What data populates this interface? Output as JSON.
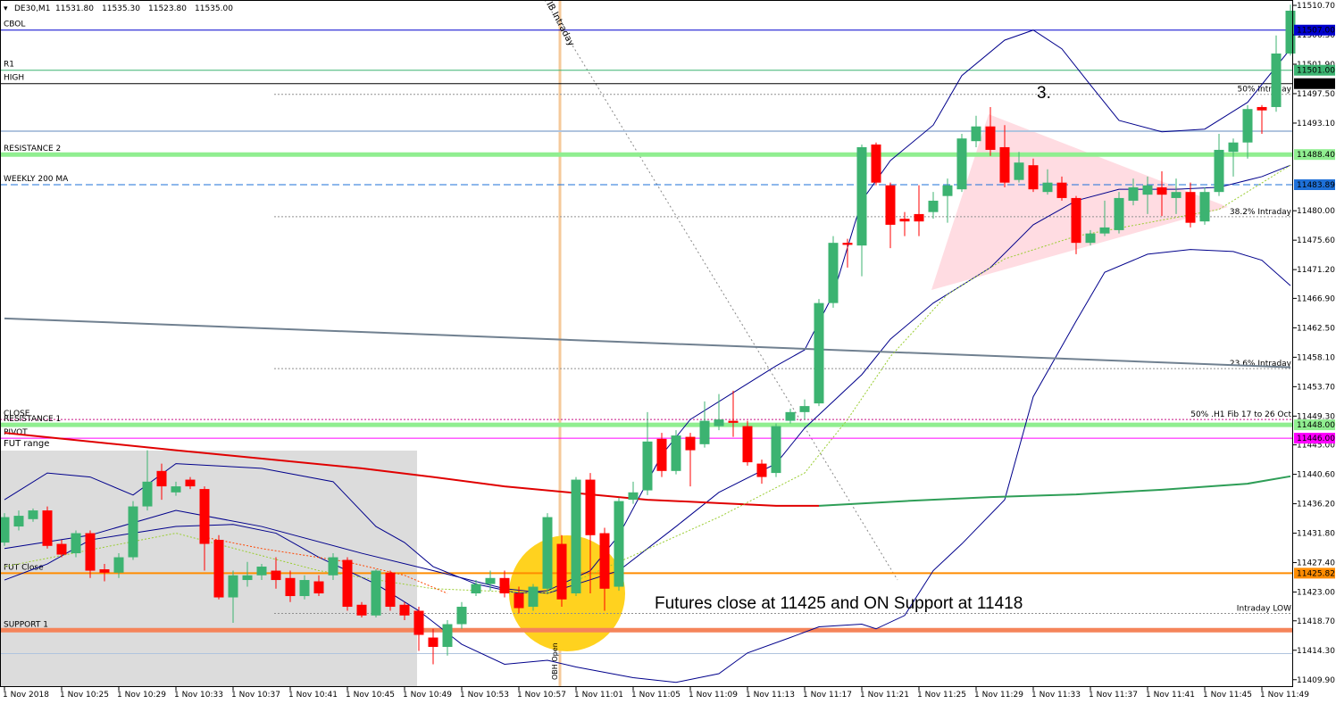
{
  "chart_data": {
    "type": "candlestick",
    "title": "DE30,M1",
    "header_values": [
      {
        "value": 11531.8,
        "label": "11531.80"
      },
      {
        "value": 11535.3,
        "label": "11535.30"
      },
      {
        "value": 11523.8,
        "label": "11523.80"
      },
      {
        "value": 11535.0,
        "label": "11535.00"
      }
    ],
    "up_color": "#3cb371",
    "down_color": "#ff0000",
    "ylim": [
      11408.8,
      11511.5
    ],
    "yticks": [
      {
        "value": 11510.7,
        "label": "11510.70"
      },
      {
        "value": 11506.3,
        "label": "11506.30"
      },
      {
        "value": 11501.9,
        "label": "11501.90"
      },
      {
        "value": 11497.5,
        "label": "11497.50"
      },
      {
        "value": 11493.1,
        "label": "11493.10"
      },
      {
        "value": 11480.0,
        "label": "11480.00"
      },
      {
        "value": 11475.6,
        "label": "11475.60"
      },
      {
        "value": 11471.2,
        "label": "11471.20"
      },
      {
        "value": 11466.9,
        "label": "11466.90"
      },
      {
        "value": 11462.5,
        "label": "11462.50"
      },
      {
        "value": 11458.1,
        "label": "11458.10"
      },
      {
        "value": 11453.7,
        "label": "11453.70"
      },
      {
        "value": 11449.3,
        "label": "11449.30"
      },
      {
        "value": 11445.0,
        "label": "11445.00"
      },
      {
        "value": 11440.6,
        "label": "11440.60"
      },
      {
        "value": 11436.2,
        "label": "11436.20"
      },
      {
        "value": 11431.8,
        "label": "11431.80"
      },
      {
        "value": 11427.4,
        "label": "11427.40"
      },
      {
        "value": 11423.0,
        "label": "11423.00"
      },
      {
        "value": 11418.7,
        "label": "11418.70"
      },
      {
        "value": 11414.3,
        "label": "11414.30"
      },
      {
        "value": 11409.9,
        "label": "11409.90"
      }
    ],
    "categories": [
      "1 Nov 2018",
      null,
      null,
      null,
      "1 Nov 10:25",
      null,
      null,
      null,
      "1 Nov 10:29",
      null,
      null,
      null,
      "1 Nov 10:33",
      null,
      null,
      null,
      "1 Nov 10:37",
      null,
      null,
      null,
      "1 Nov 10:41",
      null,
      null,
      null,
      "1 Nov 10:45",
      null,
      null,
      null,
      "1 Nov 10:49",
      null,
      null,
      null,
      "1 Nov 10:53",
      null,
      null,
      null,
      "1 Nov 10:57",
      null,
      null,
      null,
      "1 Nov 11:01",
      null,
      null,
      null,
      "1 Nov 11:05",
      null,
      null,
      null,
      "1 Nov 11:09",
      null,
      null,
      null,
      "1 Nov 11:13",
      null,
      null,
      null,
      "1 Nov 11:17",
      null,
      null,
      null,
      "1 Nov 11:21",
      null,
      null,
      null,
      "1 Nov 11:25",
      null,
      null,
      null,
      "1 Nov 11:29",
      null,
      null,
      null,
      "1 Nov 11:33",
      null,
      null,
      null,
      "1 Nov 11:37",
      null,
      null,
      null,
      "1 Nov 11:41",
      null,
      null,
      null,
      "1 Nov 11:45",
      null,
      null,
      null,
      "1 Nov 11:49",
      null,
      null
    ],
    "open": [
      11430.4,
      11432.8,
      11433.9,
      11435.2,
      11430.2,
      11428.8,
      11431.8,
      11426.4,
      11425.9,
      11428.2,
      11435.8,
      11441.1,
      11437.9,
      11439.8,
      11438.4,
      11430.8,
      11422.2,
      11424.8,
      11425.5,
      11426.2,
      11425.1,
      11422.4,
      11424.6,
      11425.5,
      11427.8,
      11421.1,
      11419.5,
      11425.9,
      11421.1,
      11420.2,
      11416.2,
      11414.8,
      11418.2,
      11422.8,
      11424.2,
      11425.1,
      11422.8,
      11420.8,
      11423.5,
      11430.2,
      11422.8,
      11439.8,
      11431.8,
      11423.8,
      11436.8,
      11438.2,
      11445.9,
      11441.1,
      11446.2,
      11445.1,
      11447.8,
      11448.6,
      11447.8,
      11442.2,
      11440.8,
      11448.6,
      11449.9,
      11451.2,
      11466.2,
      11475.2,
      11474.8,
      11489.9,
      11483.8,
      11478.8,
      11479.5,
      11479.8,
      11482.2,
      11483.2,
      11490.4,
      11492.6,
      11489.5,
      11484.6,
      11486.8,
      11482.8,
      11484.2,
      11481.9,
      11475.2,
      11476.6,
      11477.1,
      11481.5,
      11482.4,
      11483.5,
      11481.9,
      11482.8,
      11478.4,
      11482.8,
      11488.8,
      11490.2,
      11495.5,
      11495.5,
      11503.5
    ],
    "high": [
      11434.8,
      11435.2,
      11435.5,
      11435.8,
      11430.8,
      11432.2,
      11432.2,
      11427.2,
      11428.8,
      11436.6,
      11444.2,
      11442.2,
      11439.5,
      11440.2,
      11438.8,
      11431.5,
      11426.2,
      11427.5,
      11427.2,
      11428.2,
      11426.2,
      11425.5,
      11425.5,
      11428.8,
      11428.2,
      11421.5,
      11426.4,
      11426.2,
      11421.5,
      11420.8,
      11417.5,
      11418.8,
      11421.5,
      11424.8,
      11426.2,
      11426.2,
      11423.8,
      11424.2,
      11434.8,
      11431.5,
      11440.2,
      11440.8,
      11432.6,
      11437.1,
      11439.5,
      11449.9,
      11446.8,
      11447.2,
      11446.8,
      11451.5,
      11452.6,
      11453.1,
      11448.6,
      11442.8,
      11448.2,
      11450.4,
      11451.8,
      11466.8,
      11476.2,
      11475.8,
      11489.9,
      11490.2,
      11484.2,
      11479.8,
      11483.8,
      11482.8,
      11484.8,
      11491.5,
      11494.2,
      11495.5,
      11492.8,
      11488.8,
      11487.8,
      11486.2,
      11485.1,
      11482.2,
      11477.1,
      11481.5,
      11482.8,
      11484.8,
      11485.1,
      11485.9,
      11484.8,
      11484.2,
      11483.5,
      11491.5,
      11490.8,
      11495.8,
      11495.8,
      11506.2,
      11510.8
    ],
    "low": [
      11429.9,
      11432.2,
      11433.5,
      11429.5,
      11428.2,
      11428.2,
      11425.1,
      11424.6,
      11425.1,
      11427.8,
      11435.2,
      11436.8,
      11437.4,
      11438.4,
      11426.2,
      11421.9,
      11418.4,
      11423.8,
      11424.8,
      11423.5,
      11421.5,
      11421.9,
      11422.4,
      11424.8,
      11420.2,
      11419.2,
      11419.2,
      11420.2,
      11418.8,
      11414.2,
      11412.2,
      11413.5,
      11417.5,
      11422.4,
      11423.2,
      11422.2,
      11419.8,
      11420.2,
      11422.8,
      11420.8,
      11422.4,
      11422.8,
      11420.2,
      11423.2,
      11436.2,
      11437.5,
      11440.2,
      11440.6,
      11438.8,
      11444.6,
      11447.2,
      11446.2,
      11441.9,
      11439.2,
      11440.2,
      11448.2,
      11448.8,
      11450.8,
      11465.5,
      11471.5,
      11470.2,
      11483.8,
      11474.4,
      11476.2,
      11476.2,
      11478.8,
      11478.2,
      11482.8,
      11489.5,
      11488.2,
      11483.5,
      11484.2,
      11482.8,
      11482.4,
      11481.5,
      11473.5,
      11474.8,
      11476.2,
      11476.6,
      11480.8,
      11479.5,
      11479.2,
      11479.5,
      11477.5,
      11477.9,
      11482.2,
      11485.1,
      11487.8,
      11491.5,
      11494.8,
      11503.2
    ],
    "close": [
      11434.2,
      11434.4,
      11435.2,
      11429.9,
      11428.6,
      11431.8,
      11426.2,
      11425.9,
      11428.2,
      11435.8,
      11439.5,
      11438.8,
      11438.8,
      11438.8,
      11430.2,
      11422.2,
      11425.5,
      11425.5,
      11426.8,
      11424.8,
      11422.4,
      11424.8,
      11422.8,
      11428.2,
      11420.8,
      11419.5,
      11426.2,
      11420.8,
      11419.5,
      11416.6,
      11414.8,
      11418.2,
      11420.8,
      11424.2,
      11425.1,
      11422.8,
      11420.6,
      11423.8,
      11434.2,
      11421.9,
      11439.8,
      11431.5,
      11423.5,
      11436.6,
      11437.9,
      11445.5,
      11441.1,
      11446.4,
      11444.2,
      11448.6,
      11448.8,
      11448.3,
      11442.4,
      11440.2,
      11447.8,
      11449.9,
      11450.8,
      11466.2,
      11475.2,
      11474.9,
      11489.5,
      11484.2,
      11477.9,
      11478.4,
      11478.4,
      11481.5,
      11483.8,
      11490.8,
      11492.6,
      11489.1,
      11484.2,
      11487.2,
      11483.2,
      11484.2,
      11481.9,
      11475.2,
      11476.6,
      11477.5,
      11481.9,
      11483.5,
      11483.8,
      11482.4,
      11482.8,
      11478.2,
      11482.8,
      11489.1,
      11490.2,
      11495.2,
      11495.0,
      11503.5,
      11509.9
    ],
    "indicators": [
      {
        "color": "#00008b",
        "width": 1,
        "style": "solid",
        "x": [
          0,
          3,
          6,
          9,
          12,
          18,
          23,
          26,
          28,
          30,
          33,
          36,
          38,
          41,
          43,
          46,
          48,
          51,
          54,
          56,
          58,
          60,
          62,
          65,
          67,
          70,
          72,
          74,
          76,
          78,
          81,
          84,
          87,
          90
        ],
        "values": [
          11436.8,
          11440.8,
          11440.2,
          11437.5,
          11442.2,
          11441.5,
          11439.5,
          11432.8,
          11430.4,
          11426.8,
          11424.2,
          11422.8,
          11423.2,
          11426.2,
          11431.5,
          11443.5,
          11448.8,
          11452.8,
          11456.8,
          11459.2,
          11467.5,
          11481.5,
          11487.5,
          11492.8,
          11500.2,
          11505.5,
          11507.0,
          11504.2,
          11498.8,
          11493.5,
          11491.8,
          11492.2,
          11496.2,
          11504.2
        ]
      },
      {
        "color": "#00008b",
        "width": 1,
        "style": "solid",
        "x": [
          0,
          3,
          6,
          9,
          12,
          16,
          19,
          22,
          26,
          29,
          32,
          35,
          38,
          40,
          44,
          47,
          50,
          52,
          55,
          57,
          60,
          61,
          63,
          65,
          67,
          70,
          72,
          75,
          77,
          80,
          83,
          86,
          88,
          90
        ],
        "values": [
          11424.8,
          11427.2,
          11430.8,
          11431.8,
          11432.8,
          11433.1,
          11431.8,
          11428.2,
          11424.2,
          11420.2,
          11415.2,
          11412.2,
          11412.8,
          11411.8,
          11410.2,
          11409.5,
          11410.8,
          11413.9,
          11416.2,
          11417.8,
          11418.2,
          11417.5,
          11419.5,
          11426.2,
          11430.2,
          11436.8,
          11452.2,
          11463.5,
          11470.8,
          11473.5,
          11474.2,
          11473.9,
          11472.6,
          11468.8
        ]
      },
      {
        "color": "#00008b",
        "width": 1,
        "style": "solid",
        "x": [
          0,
          6,
          12,
          18,
          25,
          30,
          35,
          38,
          43,
          47,
          50,
          54,
          56,
          60,
          62,
          65,
          69,
          72,
          75,
          78,
          82,
          85,
          88,
          90
        ],
        "values": [
          11429.5,
          11431.5,
          11435.2,
          11432.8,
          11428.8,
          11426.2,
          11423.5,
          11422.8,
          11426.2,
          11432.8,
          11437.9,
          11442.2,
          11447.5,
          11455.5,
          11460.8,
          11466.2,
          11471.5,
          11477.9,
          11481.5,
          11483.2,
          11483.2,
          11483.5,
          11485.1,
          11486.8
        ]
      },
      {
        "color": "#e00000",
        "width": 2,
        "style": "solid",
        "x": [
          0,
          12,
          25,
          30,
          35,
          40,
          45,
          50,
          54,
          57
        ],
        "values": [
          11446.8,
          11444.2,
          11441.5,
          11440.2,
          11438.8,
          11437.8,
          11436.8,
          11436.3,
          11435.9,
          11435.9
        ]
      },
      {
        "color": "#2e9e57",
        "width": 2,
        "style": "solid",
        "x": [
          57,
          63,
          69,
          75,
          81,
          87,
          90
        ],
        "values": [
          11435.9,
          11436.6,
          11437.2,
          11437.6,
          11438.3,
          11439.2,
          11440.3
        ]
      },
      {
        "color": "#708090",
        "width": 2,
        "style": "solid",
        "x": [
          0,
          90
        ],
        "values": [
          11463.9,
          11456.6
        ]
      },
      {
        "color": "#9acd32",
        "width": 1,
        "style": "dotted",
        "x": [
          0,
          12,
          22,
          30,
          38,
          43,
          50,
          56,
          59,
          62,
          66,
          70,
          75,
          80,
          85,
          90
        ],
        "values": [
          11426.8,
          11431.8,
          11426.2,
          11423.5,
          11422.8,
          11427.5,
          11434.2,
          11440.8,
          11448.8,
          11458.2,
          11467.5,
          11472.8,
          11476.2,
          11478.2,
          11480.2,
          11486.8
        ]
      },
      {
        "color": "#ff4500",
        "width": 1,
        "style": "dotted",
        "x": [
          14,
          18,
          24,
          28,
          31
        ],
        "values": [
          11431.2,
          11429.5,
          11427.5,
          11425.5,
          11422.8
        ]
      }
    ],
    "levels": [
      {
        "name": "CBOL",
        "price": 11507,
        "price_label": "11507.00",
        "color": "#0000cd",
        "width": 1,
        "style": "solid"
      },
      {
        "name": "R1",
        "price": 11501,
        "price_label": "11501.00",
        "color": "#3cb371",
        "width": 1,
        "style": "solid"
      },
      {
        "name": "HIGH",
        "price": 11499,
        "price_label": "11499.00",
        "color": "#000000",
        "width": 1,
        "style": "solid"
      },
      {
        "price": 11491.9,
        "color": "#b0c4de",
        "width": 2,
        "style": "solid"
      },
      {
        "name": "RESISTANCE 2",
        "price": 11488.4,
        "price_label": "11488.40",
        "color": "#90ee90",
        "width": 5,
        "style": "solid"
      },
      {
        "name": "WEEKLY 200 MA",
        "price": 11483.89,
        "price_label": "11483.89",
        "color": "#1e70d8",
        "width": 1,
        "style": "dashed"
      },
      {
        "price": 11497.4,
        "right_label": "50%   Intraday",
        "color": "#909090",
        "width": 1,
        "style": "dotted"
      },
      {
        "price": 11479.1,
        "right_label": "38.2%  Intraday",
        "color": "#909090",
        "width": 1,
        "style": "dotted"
      },
      {
        "price": 11456.4,
        "right_label": "23.6%  Intraday",
        "color": "#909090",
        "width": 1,
        "style": "dotted"
      },
      {
        "price": 11419.8,
        "right_label": "Intraday LOW",
        "color": "#909090",
        "width": 1,
        "style": "dotted"
      },
      {
        "name": "CLOSE",
        "price": 11448.8,
        "right_label": "50%  .H1 Fib 17 to 26 Oct",
        "color": "#c71585",
        "width": 1,
        "style": "dotted"
      },
      {
        "name": "RESISTANCE 1",
        "price": 11448,
        "price_label": "11448.00",
        "color": "#90ee90",
        "width": 5,
        "style": "solid"
      },
      {
        "name": "PIVOT",
        "price": 11446,
        "price_label": "11446.00",
        "color": "#ff00ff",
        "width": 1,
        "style": "solid"
      },
      {
        "name": "FUT Close",
        "price": 11425.82,
        "price_label": "11425.82",
        "color": "#ff8c00",
        "width": 2,
        "style": "solid"
      },
      {
        "name": "SUPPORT 1",
        "price": 11417.3,
        "color": "#f5845a",
        "width": 5,
        "style": "solid"
      },
      {
        "price": 11413.8,
        "color": "#b0c4de",
        "width": 1,
        "style": "solid"
      }
    ],
    "annotations": [
      "3.",
      "Futures close at 11425 and ON Support at 11418",
      "IB Intraday",
      "OBH Open",
      "FUT range"
    ]
  }
}
